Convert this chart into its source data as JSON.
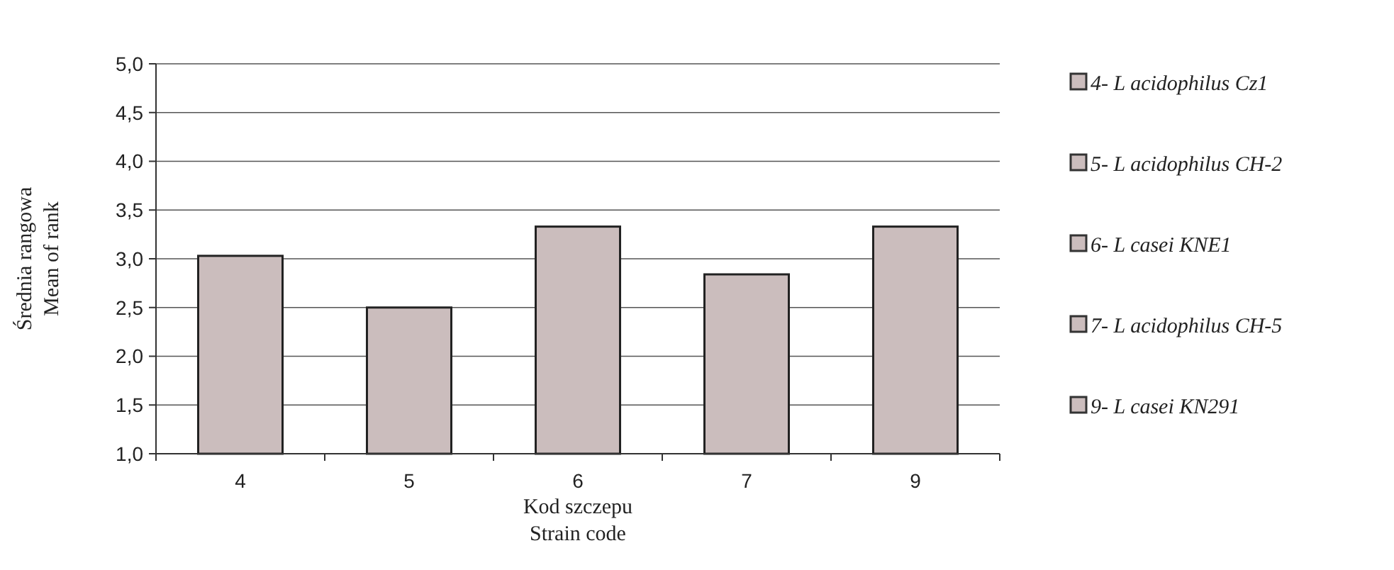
{
  "chart_data": {
    "type": "bar",
    "xlabel": "Kod szczepu\nStrain code",
    "ylabel": "Średnia rangowa\nMean of rank",
    "categories": [
      "4",
      "5",
      "6",
      "7",
      "9"
    ],
    "stacked": true,
    "series": [
      {
        "name": "4- L acidophilus Cz1",
        "color": "#cbbdbd",
        "values": [
          3.03,
          null,
          null,
          null,
          null
        ]
      },
      {
        "name": "5- L acidophilus CH-2",
        "color": "#cbbdbd",
        "values": [
          null,
          2.5,
          null,
          null,
          null
        ]
      },
      {
        "name": "6- L casei KNE1",
        "color": "#cbbdbd",
        "values": [
          null,
          null,
          3.33,
          null,
          null
        ]
      },
      {
        "name": "7- L acidophilus CH-5",
        "color": "#cbbdbd",
        "values": [
          null,
          null,
          null,
          2.84,
          null
        ]
      },
      {
        "name": "9- L casei KN291",
        "color": "#cbbdbd",
        "values": [
          null,
          null,
          null,
          null,
          3.33
        ]
      }
    ],
    "ylim": [
      1,
      5
    ],
    "yticks": [
      {
        "value": 1,
        "label": "1,0"
      },
      {
        "value": 1.5,
        "label": "1,5"
      },
      {
        "value": 2,
        "label": "2,0"
      },
      {
        "value": 2.5,
        "label": "2,5"
      },
      {
        "value": 3,
        "label": "3,0"
      },
      {
        "value": 3.5,
        "label": "3,5"
      },
      {
        "value": 4,
        "label": "4,0"
      },
      {
        "value": 4.5,
        "label": "4,5"
      },
      {
        "value": 5,
        "label": "5,0"
      }
    ],
    "grid": "y",
    "legend": "right"
  }
}
